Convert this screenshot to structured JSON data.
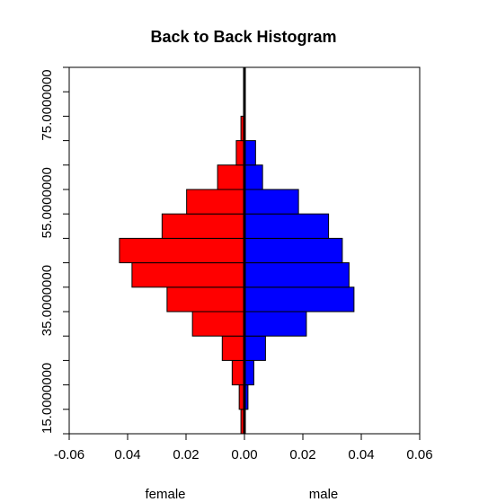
{
  "chart_data": {
    "type": "bar",
    "title": "Back to Back Histogram",
    "xlabel_left": "female",
    "xlabel_right": "male",
    "xlim": [
      -0.06,
      0.06
    ],
    "xticks": [
      "-0.06",
      "0.04",
      "0.02",
      "0.00",
      "0.02",
      "0.04",
      "0.06"
    ],
    "xtick_values": [
      -0.06,
      -0.04,
      -0.02,
      0,
      0.02,
      0.04,
      0.06
    ],
    "ylim": [
      15,
      90
    ],
    "yticks": [
      "15.0000000",
      "35.0000000",
      "55.0000000",
      "75.0000000"
    ],
    "ytick_values": [
      15,
      35,
      55,
      75
    ],
    "bins": [
      17.5,
      22.5,
      27.5,
      32.5,
      37.5,
      42.5,
      47.5,
      52.5,
      57.5,
      62.5,
      67.5,
      72.5,
      77.5,
      82.5,
      87.5
    ],
    "bin_width": 5,
    "series": [
      {
        "name": "female",
        "side": "left",
        "color": "#ff0000",
        "values": [
          0.0012,
          0.0018,
          0.0042,
          0.0076,
          0.0178,
          0.0265,
          0.0385,
          0.0428,
          0.0282,
          0.0198,
          0.0092,
          0.0028,
          0.0012,
          0.0,
          0.0
        ]
      },
      {
        "name": "male",
        "side": "right",
        "color": "#0000ff",
        "values": [
          0.0,
          0.0012,
          0.0032,
          0.0072,
          0.0212,
          0.0375,
          0.0358,
          0.0335,
          0.0288,
          0.0185,
          0.0062,
          0.0038,
          0.0,
          0.0,
          0.0
        ]
      }
    ],
    "grid": false
  }
}
